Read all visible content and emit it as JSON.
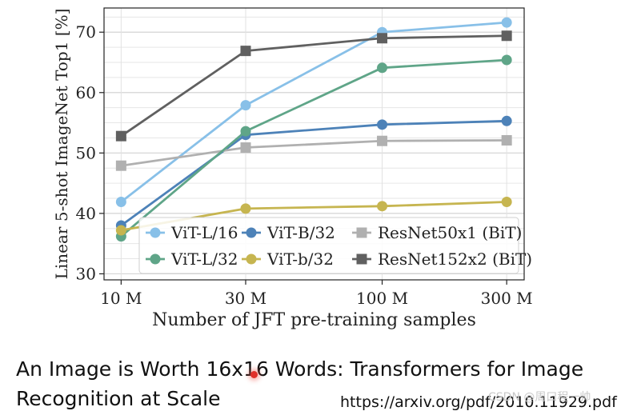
{
  "chart_data": {
    "type": "line",
    "title": "",
    "xlabel": "Number of JFT pre-training samples",
    "ylabel": "Linear 5-shot ImageNet Top1 [%]",
    "x_scale": "log",
    "x": [
      10,
      30,
      100,
      300
    ],
    "x_tick_labels": [
      "10 M",
      "30 M",
      "100 M",
      "300 M"
    ],
    "y_ticks": [
      30,
      40,
      50,
      60,
      70
    ],
    "ylim": [
      29,
      74
    ],
    "xlim": [
      8.6,
      350
    ],
    "grid": true,
    "legend": {
      "position": "bottom-right",
      "columns": 3
    },
    "series": [
      {
        "name": "ViT-L/16",
        "color": "#88c0e8",
        "marker": "circle",
        "values": [
          41.9,
          57.9,
          70.0,
          71.6
        ]
      },
      {
        "name": "ViT-B/32",
        "color": "#4d82b8",
        "marker": "circle",
        "values": [
          38.0,
          53.0,
          54.7,
          55.3
        ]
      },
      {
        "name": "ResNet50x1 (BiT)",
        "color": "#b0b0b0",
        "marker": "square",
        "values": [
          47.9,
          50.9,
          52.0,
          52.1
        ]
      },
      {
        "name": "ViT-L/32",
        "color": "#5fa588",
        "marker": "circle",
        "values": [
          36.2,
          53.6,
          64.1,
          65.4
        ]
      },
      {
        "name": "ViT-b/32",
        "color": "#c6b550",
        "marker": "circle",
        "values": [
          37.2,
          40.8,
          41.2,
          41.9
        ]
      },
      {
        "name": "ResNet152x2 (BiT)",
        "color": "#606060",
        "marker": "square",
        "values": [
          52.8,
          66.9,
          69.0,
          69.4
        ]
      }
    ]
  },
  "caption": {
    "line1": "An Image is Worth 16x16 Words: Transformers for Image",
    "line2": "Recognition at Scale",
    "url": "https://arxiv.org/pdf/2010.11929.pdf",
    "watermark": "CSDN @周口程一帅"
  }
}
